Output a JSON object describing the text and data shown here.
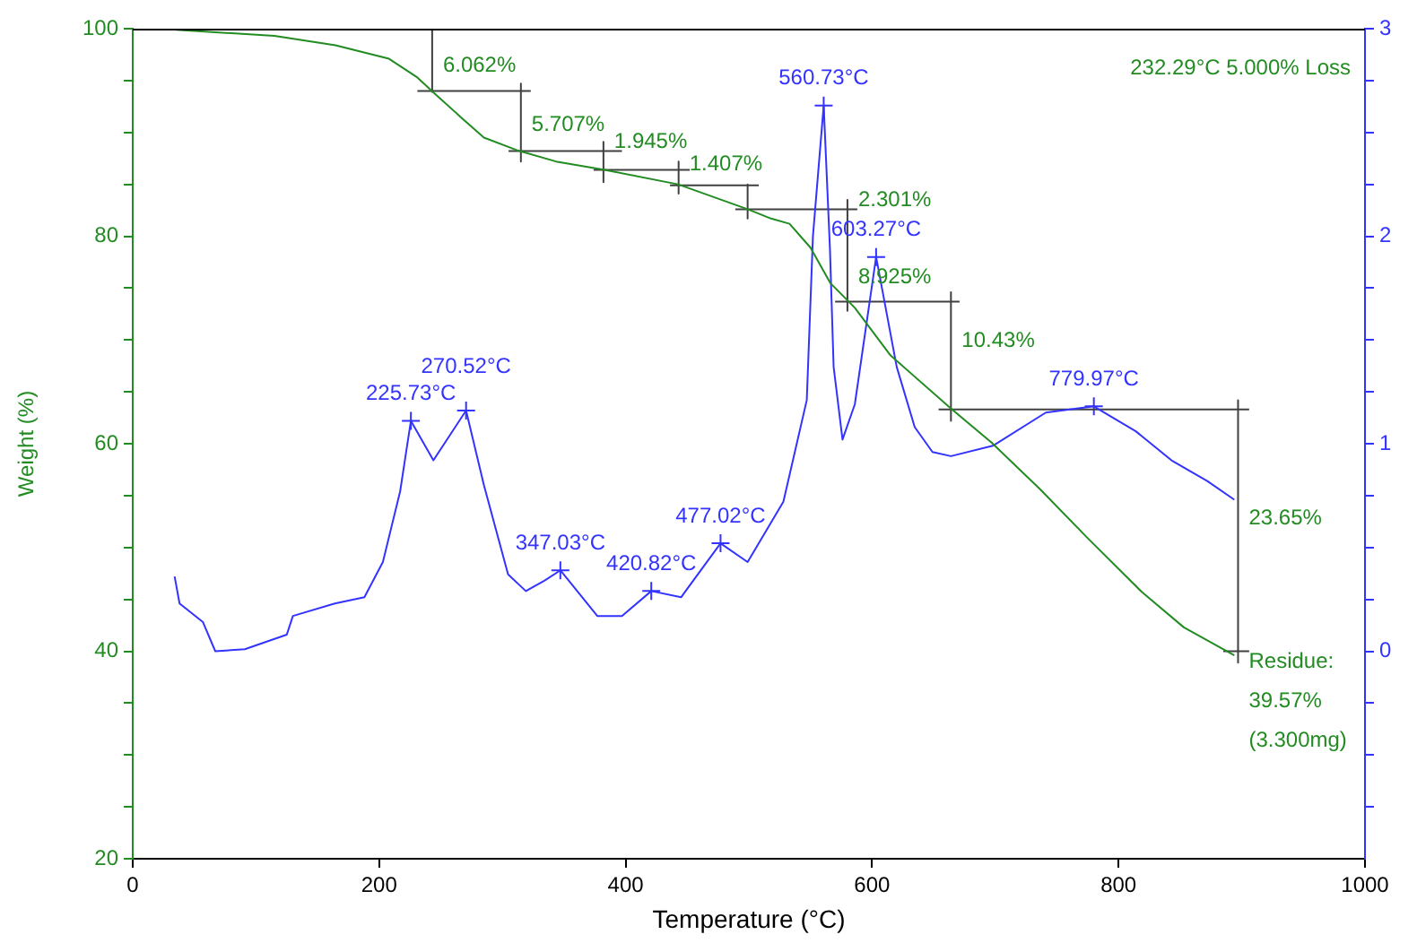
{
  "chart_data": {
    "type": "line",
    "xlabel": "Temperature (°C)",
    "ylabel": "Weight (%)",
    "xlim": [
      0,
      1000
    ],
    "xticks": [
      0,
      200,
      400,
      600,
      800,
      1000
    ],
    "ylim": [
      20,
      100
    ],
    "yticks": [
      20,
      {
        "value": 25,
        "label": null
      },
      {
        "value": 30,
        "label": null
      },
      {
        "value": 35,
        "label": null
      },
      40,
      {
        "value": 45,
        "label": null
      },
      {
        "value": 50,
        "label": null
      },
      {
        "value": 55,
        "label": null
      },
      60,
      {
        "value": 65,
        "label": null
      },
      {
        "value": 70,
        "label": null
      },
      {
        "value": 75,
        "label": null
      },
      80,
      {
        "value": 85,
        "label": null
      },
      {
        "value": 90,
        "label": null
      },
      {
        "value": 95,
        "label": null
      },
      100
    ],
    "y2lim": [
      -1,
      3
    ],
    "y2ticks": [
      {
        "value": -0.75,
        "label": null
      },
      {
        "value": -0.5,
        "label": null
      },
      {
        "value": -0.25,
        "label": null
      },
      0,
      {
        "value": 0.25,
        "label": null
      },
      {
        "value": 0.5,
        "label": null
      },
      {
        "value": 0.75,
        "label": null
      },
      1,
      {
        "value": 1.25,
        "label": null
      },
      {
        "value": 1.5,
        "label": null
      },
      {
        "value": 1.75,
        "label": null
      },
      2,
      {
        "value": 2.25,
        "label": null
      },
      {
        "value": 2.5,
        "label": null
      },
      {
        "value": 2.75,
        "label": null
      },
      3
    ],
    "series": [
      {
        "axis": "y",
        "color": "#228b22",
        "x": [
          33.5,
          35.4,
          115,
          164.5,
          208,
          231,
          244.5,
          266,
          285,
          311.5,
          343.5,
          383,
          442.5,
          499,
          518,
          533,
          550,
          566,
          586,
          615,
          664,
          697,
          736.5,
          775,
          819,
          853,
          894
        ],
        "values": [
          100,
          99.9,
          99.3,
          98.4,
          97.1,
          95.3,
          93.8,
          91.5,
          89.5,
          88.3,
          87.2,
          86.4,
          85.0,
          82.6,
          81.7,
          81.2,
          78.9,
          75.5,
          73.1,
          68.5,
          63.4,
          60.1,
          55.6,
          50.9,
          45.7,
          42.3,
          39.6
        ]
      },
      {
        "axis": "y2",
        "color": "#3333ff",
        "x": [
          34,
          38,
          57,
          67,
          91,
          125,
          130,
          164,
          188,
          203,
          217,
          225.73,
          244,
          270.52,
          285,
          304.6,
          319,
          334,
          347.03,
          377,
          397,
          420.82,
          445,
          477.02,
          499,
          528,
          547,
          552,
          560.73,
          565.8,
          568.8,
          576,
          586,
          603.27,
          620,
          634.6,
          649,
          664,
          698,
          741,
          779.97,
          814,
          843,
          872,
          894
        ],
        "values": [
          0.36,
          0.23,
          0.14,
          0.0,
          0.01,
          0.08,
          0.17,
          0.23,
          0.26,
          0.43,
          0.77,
          1.11,
          0.92,
          1.16,
          0.8,
          0.37,
          0.29,
          0.34,
          0.39,
          0.17,
          0.17,
          0.29,
          0.26,
          0.52,
          0.43,
          0.72,
          1.21,
          2.0,
          2.63,
          1.94,
          1.37,
          1.02,
          1.19,
          1.9,
          1.37,
          1.08,
          0.96,
          0.94,
          0.99,
          1.15,
          1.18,
          1.06,
          0.92,
          0.82,
          0.73
        ]
      },
      {
        "axis": "y",
        "color": "#404040",
        "x": [
          243,
          243,
          null,
          231,
          323,
          null,
          315,
          315,
          null,
          305,
          397,
          null,
          382,
          382,
          null,
          374,
          452,
          null,
          443,
          443,
          null,
          436,
          508,
          null,
          499,
          499,
          null,
          489,
          588,
          null,
          580,
          580,
          null,
          570,
          671,
          null,
          664,
          664,
          null,
          654,
          906,
          null,
          897,
          897,
          null,
          885,
          906
        ],
        "values": [
          100,
          93.9,
          null,
          94.0,
          94.0,
          null,
          94.7,
          87.2,
          null,
          88.2,
          88.2,
          null,
          89.1,
          85.2,
          null,
          86.4,
          86.4,
          null,
          87.2,
          84.1,
          null,
          84.9,
          84.9,
          null,
          85.0,
          81.7,
          null,
          82.6,
          82.6,
          null,
          83.5,
          72.8,
          null,
          73.7,
          73.7,
          null,
          74.6,
          62.2,
          null,
          63.3,
          63.3,
          null,
          64.2,
          38.9,
          null,
          40.0,
          40.0
        ]
      },
      {
        "type": "scatter",
        "axis": "y2",
        "color": "#3333ff",
        "marker": "cross",
        "x": [
          225.73,
          270.52,
          347.03,
          420.82,
          477.02,
          560.73,
          603.27,
          779.97
        ],
        "values": [
          1.11,
          1.16,
          0.39,
          0.29,
          0.52,
          2.63,
          1.9,
          1.18
        ]
      }
    ],
    "annotations": [
      "232.29°C 5.000% Loss",
      {
        "text": "225.73°C",
        "x": 225.73,
        "y": 62.2
      },
      {
        "text": "270.52°C",
        "x": 270.52,
        "y": 63.2
      },
      {
        "text": "347.03°C",
        "x": 347.03,
        "y": 47.8
      },
      {
        "text": "420.82°C",
        "x": 420.82,
        "y": 45.8
      },
      {
        "text": "477.02°C",
        "x": 477.02,
        "y": 50.4
      },
      {
        "text": "560.73°C",
        "x": 560.73,
        "y": 92.6
      },
      {
        "text": "603.27°C",
        "x": 603.27,
        "y": 78.0
      },
      {
        "text": "779.97°C",
        "x": 779.97,
        "y": 63.6
      },
      {
        "text": "6.062%",
        "x": 243,
        "y": 96.4
      },
      {
        "text": "5.707%",
        "x": 315,
        "y": 90.7
      },
      {
        "text": "1.945%",
        "x": 382,
        "y": 89.1
      },
      {
        "text": "1.407%",
        "x": 443,
        "y": 86.9
      },
      {
        "text": "2.301%",
        "x": 580,
        "y": 83.5
      },
      {
        "text": "8.925%",
        "x": 580,
        "y": 76.0
      },
      {
        "text": "10.43%",
        "x": 664,
        "y": 69.9
      },
      {
        "text": "23.65%",
        "x": 897,
        "y": 52.8
      },
      {
        "text": "Residue:\n39.57%\n(3.300mg)",
        "x": 897,
        "y": 39.0
      }
    ]
  }
}
